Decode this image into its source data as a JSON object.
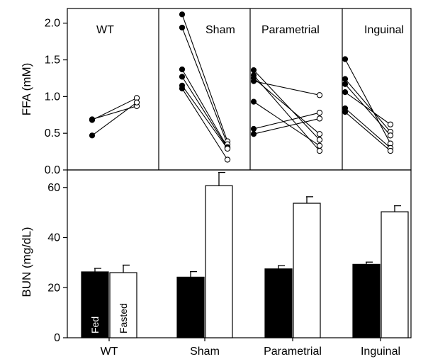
{
  "chart_data": [
    {
      "type": "scatter",
      "ylabel": "FFA (mM)",
      "ylim": [
        0,
        2.2
      ],
      "yticks": [
        "0.0",
        "0.5",
        "1.0",
        "1.5",
        "2.0"
      ],
      "ytick_values": [
        0,
        0.5,
        1.0,
        1.5,
        2.0
      ],
      "panels": [
        {
          "label": "WT",
          "pairs": [
            [
              0.69,
              0.87
            ],
            [
              0.68,
              0.98
            ],
            [
              0.47,
              0.92
            ]
          ]
        },
        {
          "label": "Sham",
          "pairs": [
            [
              2.12,
              0.39
            ],
            [
              1.94,
              0.35
            ],
            [
              1.37,
              0.31
            ],
            [
              1.27,
              0.3
            ],
            [
              1.15,
              0.29
            ],
            [
              1.11,
              0.14
            ]
          ]
        },
        {
          "label": "Parametrial",
          "pairs": [
            [
              1.36,
              0.41
            ],
            [
              1.29,
              0.26
            ],
            [
              1.25,
              0.49
            ],
            [
              1.21,
              1.02
            ],
            [
              0.93,
              0.33
            ],
            [
              0.56,
              0.78
            ],
            [
              0.49,
              0.7
            ]
          ]
        },
        {
          "label": "Inguinal",
          "pairs": [
            [
              1.51,
              0.36
            ],
            [
              1.24,
              0.52
            ],
            [
              1.17,
              0.47
            ],
            [
              1.06,
              0.62
            ],
            [
              0.84,
              0.3
            ],
            [
              0.79,
              0.26
            ]
          ]
        }
      ],
      "series": [
        {
          "name": "Fed",
          "marker": "filled-circle",
          "color": "#000000"
        },
        {
          "name": "Fasted",
          "marker": "open-circle",
          "color": "#ffffff"
        }
      ]
    },
    {
      "type": "bar",
      "ylabel": "BUN (mg/dL)",
      "ylim": [
        0,
        67
      ],
      "yticks": [
        "0",
        "20",
        "40",
        "60"
      ],
      "ytick_values": [
        0,
        20,
        40,
        60
      ],
      "categories": [
        "WT",
        "Sham",
        "Parametrial",
        "Inguinal"
      ],
      "series": [
        {
          "name": "Fed",
          "color": "#000000",
          "values": [
            26.3,
            24.2,
            27.5,
            29.3
          ],
          "errors": [
            1.4,
            2.2,
            1.3,
            0.9
          ]
        },
        {
          "name": "Fasted",
          "color": "#ffffff",
          "values": [
            26.0,
            60.7,
            53.7,
            50.3
          ],
          "errors": [
            3.0,
            5.3,
            2.6,
            2.4
          ]
        }
      ]
    }
  ]
}
